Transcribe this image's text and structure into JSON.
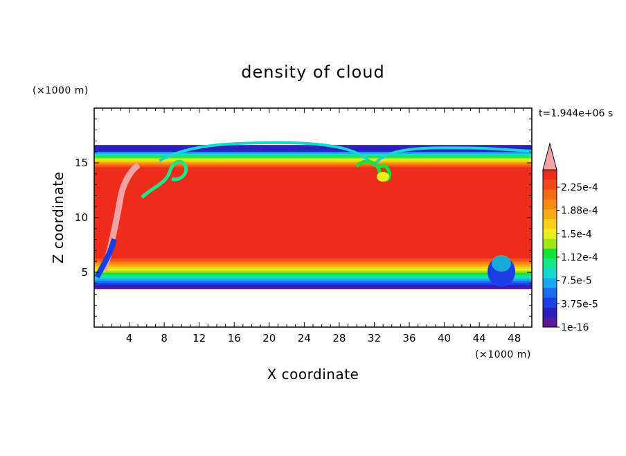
{
  "chart_data": {
    "type": "heatmap",
    "title": "density of cloud",
    "xlabel": "X coordinate",
    "ylabel": "Z coordinate",
    "x_unit": "(×1000 m)",
    "y_unit": "(×1000 m)",
    "time_label": "t=1.944e+06 s",
    "xlim": [
      0,
      50
    ],
    "ylim": [
      0,
      20
    ],
    "x_ticks": [
      4,
      8,
      12,
      16,
      20,
      24,
      28,
      32,
      36,
      40,
      44,
      48
    ],
    "y_ticks": [
      5,
      10,
      15
    ],
    "field_extent": {
      "z_bottom": 3.5,
      "z_top": 16.5
    },
    "dense_core": {
      "z_from": 6.5,
      "z_to": 14.5,
      "value": 0.00023
    },
    "colorbar": {
      "labels": [
        "2.25e-4",
        "1.88e-4",
        "1.5e-4",
        "1.12e-4",
        "7.5e-5",
        "3.75e-5",
        "1e-16"
      ],
      "label_values": [
        0.000225,
        0.000188,
        0.00015,
        0.000112,
        7.5e-05,
        3.75e-05,
        1e-16
      ],
      "colors": [
        "#5a189a",
        "#2a1fbe",
        "#1c3ee6",
        "#1a6cf2",
        "#19a7f0",
        "#16d8d2",
        "#14e88a",
        "#18e13a",
        "#9ee81a",
        "#e7ef16",
        "#f8d214",
        "#f8ac12",
        "#f78a12",
        "#f66a14",
        "#f34a1a",
        "#ee2c1c"
      ],
      "extend_color": "#f3a3a3"
    }
  }
}
